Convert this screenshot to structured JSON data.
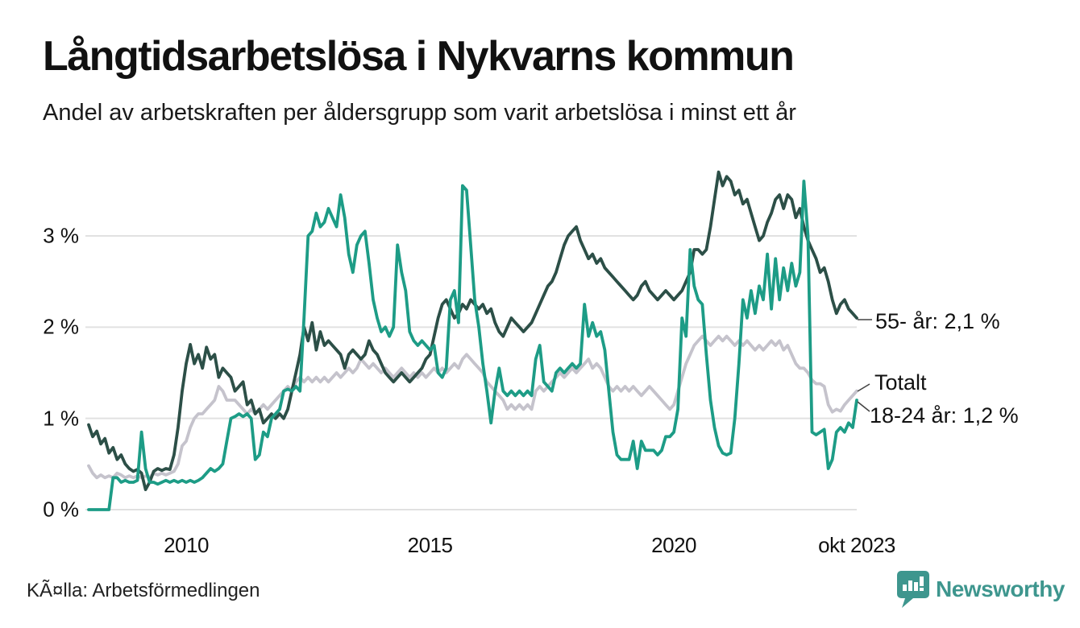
{
  "header": {
    "title": "Långtidsarbetslösa i Nykvarns kommun",
    "subtitle": "Andel av arbetskraften per åldersgrupp som varit arbetslösa i minst ett år"
  },
  "chart_data": {
    "type": "line",
    "title": "Långtidsarbetslösa i Nykvarns kommun",
    "subtitle": "Andel av arbetskraften per åldersgrupp som varit arbetslösa i minst ett år",
    "x_unit": "månad",
    "x_domain_years": [
      2008.0,
      2023.75
    ],
    "ylim": [
      0,
      3.85
    ],
    "grid": true,
    "legend_position": "right-end-labels",
    "grid_color": "#e1e1e1",
    "yticks": [
      {
        "value": 0,
        "label": "0 %"
      },
      {
        "value": 1,
        "label": "1 %"
      },
      {
        "value": 2,
        "label": "2 %"
      },
      {
        "value": 3,
        "label": "3 %"
      }
    ],
    "xticks": [
      {
        "year": 2010.0,
        "label": "2010"
      },
      {
        "year": 2015.0,
        "label": "2015"
      },
      {
        "year": 2020.0,
        "label": "2020"
      },
      {
        "year": 2023.75,
        "label": "okt 2023"
      }
    ],
    "series": [
      {
        "id": "totalt",
        "name": "Totalt",
        "end_label": "Totalt",
        "end_value": 1.3,
        "color": "#c5c3cc",
        "values": [
          0.48,
          0.4,
          0.35,
          0.38,
          0.35,
          0.37,
          0.35,
          0.4,
          0.38,
          0.35,
          0.37,
          0.35,
          0.37,
          0.35,
          0.37,
          0.35,
          0.4,
          0.38,
          0.4,
          0.38,
          0.4,
          0.42,
          0.5,
          0.7,
          0.75,
          0.9,
          1.0,
          1.05,
          1.05,
          1.1,
          1.15,
          1.2,
          1.35,
          1.3,
          1.2,
          1.2,
          1.2,
          1.15,
          1.1,
          1.05,
          1.1,
          1.05,
          1.1,
          1.15,
          1.1,
          1.15,
          1.2,
          1.25,
          1.3,
          1.35,
          1.3,
          1.4,
          1.45,
          1.4,
          1.45,
          1.4,
          1.45,
          1.4,
          1.45,
          1.4,
          1.45,
          1.5,
          1.45,
          1.5,
          1.55,
          1.5,
          1.55,
          1.65,
          1.6,
          1.55,
          1.6,
          1.55,
          1.5,
          1.55,
          1.5,
          1.45,
          1.5,
          1.55,
          1.5,
          1.45,
          1.5,
          1.45,
          1.5,
          1.45,
          1.5,
          1.55,
          1.5,
          1.55,
          1.5,
          1.55,
          1.6,
          1.55,
          1.65,
          1.7,
          1.65,
          1.6,
          1.55,
          1.5,
          1.4,
          1.35,
          1.3,
          1.25,
          1.2,
          1.1,
          1.15,
          1.1,
          1.15,
          1.1,
          1.15,
          1.1,
          1.3,
          1.35,
          1.3,
          1.35,
          1.4,
          1.45,
          1.5,
          1.45,
          1.5,
          1.55,
          1.5,
          1.55,
          1.6,
          1.65,
          1.55,
          1.6,
          1.55,
          1.45,
          1.35,
          1.3,
          1.35,
          1.3,
          1.35,
          1.3,
          1.35,
          1.3,
          1.25,
          1.3,
          1.35,
          1.3,
          1.25,
          1.2,
          1.15,
          1.1,
          1.15,
          1.3,
          1.45,
          1.6,
          1.7,
          1.8,
          1.85,
          1.9,
          1.85,
          1.8,
          1.85,
          1.9,
          1.85,
          1.9,
          1.85,
          1.8,
          1.85,
          1.8,
          1.85,
          1.8,
          1.75,
          1.8,
          1.75,
          1.8,
          1.85,
          1.8,
          1.85,
          1.75,
          1.8,
          1.7,
          1.6,
          1.55,
          1.55,
          1.5,
          1.42,
          1.38,
          1.38,
          1.35,
          1.15,
          1.07,
          1.1,
          1.08,
          1.15,
          1.2,
          1.25,
          1.3
        ]
      },
      {
        "id": "55-ar",
        "name": "55- år",
        "end_label": "55- år: 2,1 %",
        "end_value": 2.1,
        "color": "#2c4f47",
        "values": [
          0.93,
          0.8,
          0.86,
          0.72,
          0.78,
          0.62,
          0.68,
          0.55,
          0.6,
          0.5,
          0.45,
          0.42,
          0.44,
          0.4,
          0.22,
          0.3,
          0.42,
          0.45,
          0.43,
          0.45,
          0.44,
          0.6,
          0.9,
          1.3,
          1.6,
          1.81,
          1.6,
          1.7,
          1.55,
          1.78,
          1.65,
          1.7,
          1.45,
          1.55,
          1.5,
          1.45,
          1.3,
          1.35,
          1.4,
          1.15,
          1.2,
          1.05,
          1.1,
          0.95,
          1.0,
          1.05,
          1.0,
          1.05,
          1.0,
          1.1,
          1.3,
          1.5,
          1.7,
          2.0,
          1.85,
          2.05,
          1.75,
          1.95,
          1.8,
          1.85,
          1.8,
          1.75,
          1.7,
          1.55,
          1.7,
          1.75,
          1.7,
          1.65,
          1.7,
          1.85,
          1.75,
          1.7,
          1.6,
          1.5,
          1.45,
          1.4,
          1.45,
          1.5,
          1.45,
          1.4,
          1.45,
          1.5,
          1.55,
          1.65,
          1.7,
          1.9,
          2.1,
          2.25,
          2.3,
          2.2,
          2.1,
          2.15,
          2.25,
          2.2,
          2.3,
          2.25,
          2.2,
          2.25,
          2.15,
          2.2,
          2.05,
          1.95,
          1.9,
          2.0,
          2.1,
          2.05,
          2.0,
          1.95,
          2.0,
          2.05,
          2.15,
          2.25,
          2.35,
          2.45,
          2.5,
          2.6,
          2.75,
          2.9,
          3.0,
          3.05,
          3.1,
          2.95,
          2.85,
          2.75,
          2.8,
          2.7,
          2.75,
          2.65,
          2.6,
          2.55,
          2.5,
          2.45,
          2.4,
          2.35,
          2.3,
          2.35,
          2.45,
          2.5,
          2.4,
          2.35,
          2.3,
          2.35,
          2.4,
          2.35,
          2.3,
          2.35,
          2.4,
          2.5,
          2.6,
          2.85,
          2.85,
          2.8,
          2.85,
          3.1,
          3.4,
          3.7,
          3.55,
          3.65,
          3.6,
          3.45,
          3.5,
          3.35,
          3.4,
          3.25,
          3.1,
          2.95,
          3.0,
          3.15,
          3.25,
          3.4,
          3.45,
          3.3,
          3.45,
          3.4,
          3.2,
          3.3,
          3.1,
          2.95,
          2.85,
          2.75,
          2.6,
          2.65,
          2.5,
          2.3,
          2.15,
          2.25,
          2.3,
          2.2,
          2.15,
          2.1
        ]
      },
      {
        "id": "18-24-ar",
        "name": "18-24 år",
        "end_label": "18-24 år: 1,2 %",
        "end_value": 1.2,
        "color": "#1d9c86",
        "values": [
          0.0,
          0.0,
          0.0,
          0.0,
          0.0,
          0.0,
          0.35,
          0.35,
          0.3,
          0.32,
          0.3,
          0.3,
          0.32,
          0.85,
          0.45,
          0.3,
          0.3,
          0.28,
          0.3,
          0.32,
          0.3,
          0.32,
          0.3,
          0.32,
          0.3,
          0.32,
          0.3,
          0.32,
          0.35,
          0.4,
          0.45,
          0.42,
          0.45,
          0.5,
          0.75,
          1.0,
          1.02,
          1.05,
          1.02,
          1.05,
          1.0,
          0.55,
          0.6,
          0.85,
          0.8,
          1.0,
          1.05,
          1.1,
          1.3,
          1.32,
          1.3,
          1.35,
          1.3,
          2.1,
          3.0,
          3.05,
          3.25,
          3.1,
          3.15,
          3.3,
          3.2,
          3.1,
          3.45,
          3.2,
          2.8,
          2.6,
          2.9,
          3.0,
          3.05,
          2.7,
          2.3,
          2.1,
          1.95,
          2.0,
          1.9,
          2.0,
          2.9,
          2.6,
          2.4,
          1.95,
          1.85,
          1.8,
          1.85,
          1.8,
          1.75,
          1.8,
          1.5,
          1.45,
          1.55,
          2.3,
          2.4,
          2.05,
          3.55,
          3.5,
          2.9,
          2.3,
          2.0,
          1.6,
          1.3,
          0.95,
          1.3,
          1.55,
          1.3,
          1.25,
          1.3,
          1.25,
          1.3,
          1.25,
          1.3,
          1.25,
          1.65,
          1.8,
          1.4,
          1.35,
          1.3,
          1.5,
          1.55,
          1.5,
          1.55,
          1.6,
          1.55,
          1.6,
          2.25,
          1.9,
          2.05,
          1.9,
          1.95,
          1.75,
          1.3,
          0.85,
          0.6,
          0.55,
          0.55,
          0.55,
          0.75,
          0.45,
          0.75,
          0.65,
          0.65,
          0.65,
          0.6,
          0.65,
          0.8,
          0.8,
          0.85,
          1.1,
          2.1,
          1.9,
          2.85,
          2.45,
          2.3,
          2.25,
          1.7,
          1.2,
          0.9,
          0.7,
          0.62,
          0.6,
          0.62,
          1.0,
          1.6,
          2.3,
          2.1,
          2.4,
          2.15,
          2.45,
          2.3,
          2.8,
          2.2,
          2.75,
          2.3,
          2.65,
          2.4,
          2.7,
          2.45,
          2.6,
          3.6,
          3.0,
          0.85,
          0.82,
          0.85,
          0.88,
          0.45,
          0.55,
          0.85,
          0.9,
          0.85,
          0.95,
          0.9,
          1.2
        ]
      }
    ]
  },
  "footer": {
    "source": "KÃ¤lla: Arbetsförmedlingen",
    "brand_name": "Newsworthy",
    "brand_color": "#3e968e"
  }
}
